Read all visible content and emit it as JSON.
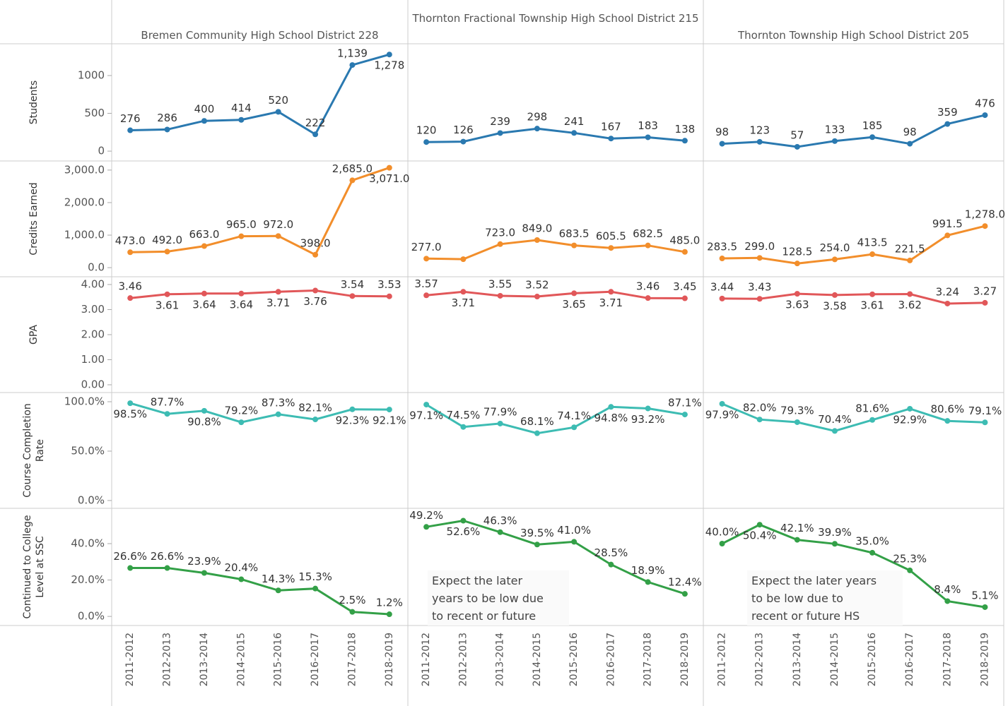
{
  "chart_data": {
    "type": "line",
    "columns": [
      "Bremen Community High School District 228",
      "Thornton Fractional Township High School District 215",
      "Thornton Township High School District 205"
    ],
    "categories": [
      "2011-2012",
      "2012-2013",
      "2013-2014",
      "2014-2015",
      "2015-2016",
      "2016-2017",
      "2017-2018",
      "2018-2019"
    ],
    "rows": [
      {
        "label": "Students",
        "color": "#2a79b0",
        "ylim": [
          -130,
          1420
        ],
        "yticks": [
          0,
          500,
          1000
        ],
        "values": [
          [
            276,
            286,
            400,
            414,
            520,
            222,
            1139,
            1278
          ],
          [
            120,
            126,
            239,
            298,
            241,
            167,
            183,
            138
          ],
          [
            98,
            123,
            57,
            133,
            185,
            98,
            359,
            476
          ]
        ],
        "value_labels": [
          [
            "276",
            "286",
            "400",
            "414",
            "520",
            "222",
            "1,139",
            "1,278"
          ],
          [
            "120",
            "126",
            "239",
            "298",
            "241",
            "167",
            "183",
            "138"
          ],
          [
            "98",
            "123",
            "57",
            "133",
            "185",
            "98",
            "359",
            "476"
          ]
        ]
      },
      {
        "label": "Credits Earned",
        "color": "#f28e2b",
        "ylim": [
          -280,
          3280
        ],
        "yticks": [
          {
            "value": 0,
            "label": "0.0"
          },
          {
            "value": 1000,
            "label": "1,000.0"
          },
          {
            "value": 2000,
            "label": "2,000.0"
          },
          {
            "value": 3000,
            "label": "3,000.0"
          }
        ],
        "values": [
          [
            473,
            492,
            663,
            965,
            972,
            398,
            2685,
            3071
          ],
          [
            277,
            260,
            723,
            849,
            683.5,
            605.5,
            682.5,
            485
          ],
          [
            283.5,
            299,
            128.5,
            254,
            413.5,
            221.5,
            991.5,
            1278
          ]
        ],
        "value_labels": [
          [
            "473.0",
            "492.0",
            "663.0",
            "965.0",
            "972.0",
            "398.0",
            "2,685.0",
            "3,071.0"
          ],
          [
            "277.0",
            null,
            "723.0",
            "849.0",
            "683.5",
            "605.5",
            "682.5",
            "485.0"
          ],
          [
            "283.5",
            "299.0",
            "128.5",
            "254.0",
            "413.5",
            "221.5",
            "991.5",
            "1,278.0"
          ]
        ]
      },
      {
        "label": "GPA",
        "color": "#e15759",
        "ylim": [
          -0.31,
          4.31
        ],
        "yticks": [
          {
            "value": 0,
            "label": "0.00"
          },
          {
            "value": 1,
            "label": "1.00"
          },
          {
            "value": 2,
            "label": "2.00"
          },
          {
            "value": 3,
            "label": "3.00"
          },
          {
            "value": 4,
            "label": "4.00"
          }
        ],
        "values": [
          [
            3.46,
            3.61,
            3.64,
            3.64,
            3.71,
            3.76,
            3.54,
            3.53
          ],
          [
            3.57,
            3.71,
            3.55,
            3.52,
            3.65,
            3.71,
            3.46,
            3.45
          ],
          [
            3.44,
            3.43,
            3.63,
            3.58,
            3.61,
            3.62,
            3.24,
            3.27
          ]
        ],
        "value_labels": [
          [
            "3.46",
            "3.61",
            "3.64",
            "3.64",
            "3.71",
            "3.76",
            "3.54",
            "3.53"
          ],
          [
            "3.57",
            "3.71",
            "3.55",
            "3.52",
            "3.65",
            "3.71",
            "3.46",
            "3.45"
          ],
          [
            "3.44",
            "3.43",
            "3.63",
            "3.58",
            "3.61",
            "3.62",
            "3.24",
            "3.27"
          ]
        ]
      },
      {
        "label": "Course Completion Rate",
        "color": "#3dbcb3",
        "ylim": [
          -7.9,
          109.3
        ],
        "yticks": [
          {
            "value": 0,
            "label": "0.0%"
          },
          {
            "value": 50,
            "label": "50.0%"
          },
          {
            "value": 100,
            "label": "100.0%"
          }
        ],
        "values": [
          [
            98.5,
            87.7,
            90.8,
            79.2,
            87.3,
            82.1,
            92.3,
            92.1
          ],
          [
            97.1,
            74.5,
            77.9,
            68.1,
            74.1,
            94.8,
            93.2,
            87.1
          ],
          [
            97.9,
            82.0,
            79.3,
            70.4,
            81.6,
            92.9,
            80.6,
            79.1
          ]
        ],
        "value_labels": [
          [
            "98.5%",
            "87.7%",
            "90.8%",
            "79.2%",
            "87.3%",
            "82.1%",
            "92.3%",
            "92.1%"
          ],
          [
            "97.1%",
            "74.5%",
            "77.9%",
            "68.1%",
            "74.1%",
            "94.8%",
            "93.2%",
            "87.1%"
          ],
          [
            "97.9%",
            "82.0%",
            "79.3%",
            "70.4%",
            "81.6%",
            "92.9%",
            "80.6%",
            "79.1%"
          ]
        ]
      },
      {
        "label": "Continued to College Level at SSC",
        "color": "#33a047",
        "ylim": [
          -5,
          59.4
        ],
        "yticks": [
          {
            "value": 0,
            "label": "0.0%"
          },
          {
            "value": 20,
            "label": "20.0%"
          },
          {
            "value": 40,
            "label": "40.0%"
          }
        ],
        "values": [
          [
            26.6,
            26.6,
            23.9,
            20.4,
            14.3,
            15.3,
            2.5,
            1.2
          ],
          [
            49.2,
            52.6,
            46.3,
            39.5,
            41.0,
            28.5,
            18.9,
            12.4
          ],
          [
            40.0,
            50.4,
            42.1,
            39.9,
            35.0,
            25.3,
            8.4,
            5.1
          ]
        ],
        "value_labels": [
          [
            "26.6%",
            "26.6%",
            "23.9%",
            "20.4%",
            "14.3%",
            "15.3%",
            "2.5%",
            "1.2%"
          ],
          [
            "49.2%",
            "52.6%",
            "46.3%",
            "39.5%",
            "41.0%",
            "28.5%",
            "18.9%",
            "12.4%"
          ],
          [
            "40.0%",
            "50.4%",
            "42.1%",
            "39.9%",
            "35.0%",
            "25.3%",
            "8.4%",
            "5.1%"
          ]
        ]
      }
    ],
    "annotations": [
      [
        "Expect the later",
        "years to be low due",
        "to recent or future"
      ],
      [
        "Expect the later years",
        "to be low due to",
        "recent or future HS"
      ]
    ]
  }
}
